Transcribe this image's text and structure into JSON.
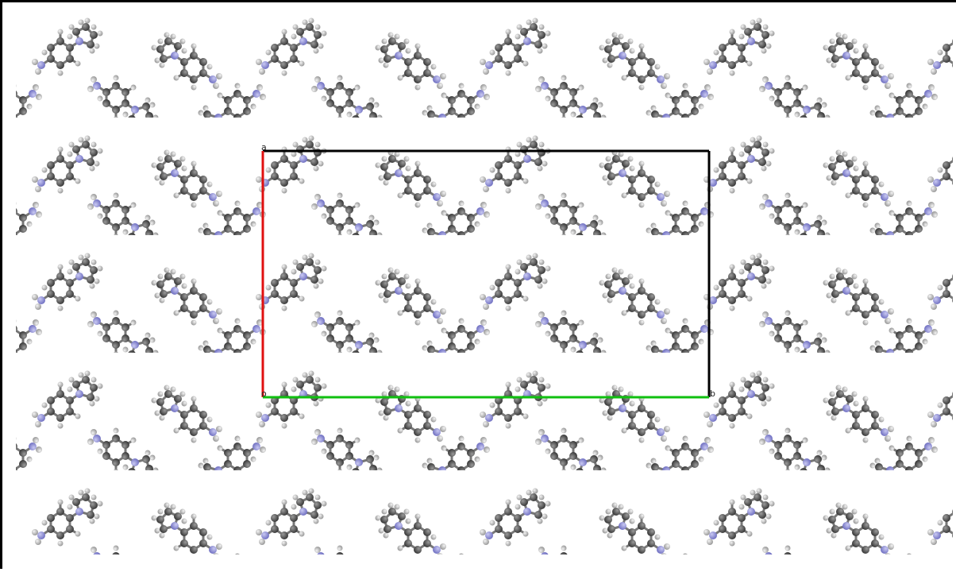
{
  "axis_labels": {
    "a": "a",
    "origin": "o",
    "b": "b"
  }
}
